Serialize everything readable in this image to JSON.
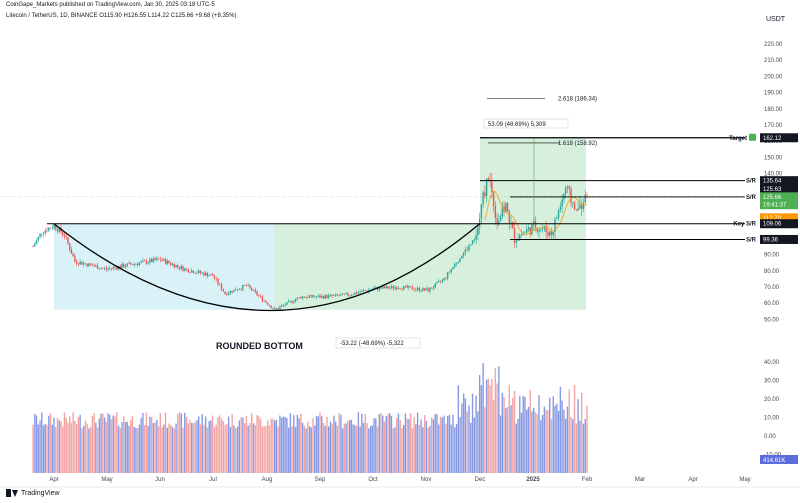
{
  "header": {
    "publish_line": "CoinGape_Markets published on TradingView.com, Jan 30, 2025 03:18 UTC-5",
    "symbol_line": "Litecoin / TetherUS, 1D, BINANCE  O115.90  H126.55  L114.22  C125.66  +9.68 (+8.35%)"
  },
  "currency": "USDT",
  "brand": "TradingView",
  "colors": {
    "up": "#26a69a",
    "down": "#ef5350",
    "vol_up": "#7b8ee0",
    "vol_down": "#f29a9a",
    "cup_fill": "#d9f2f7",
    "green_fill": "#c8ebd2",
    "line": "#000000",
    "target_green": "#4caf50"
  },
  "chart_data": {
    "type": "candlestick",
    "title": "Litecoin / TetherUS, 1D, BINANCE",
    "x_ticks": [
      "Apr",
      "May",
      "Jun",
      "Jul",
      "Aug",
      "Sep",
      "Oct",
      "Nov",
      "Dec",
      "2025",
      "Feb",
      "Mar",
      "Apr",
      "May"
    ],
    "y_ticks": [
      220,
      210,
      200,
      190,
      180,
      170,
      160,
      150,
      140,
      130,
      120,
      110,
      100,
      90,
      80,
      70,
      60,
      50
    ],
    "volume_ticks": [
      "40.00",
      "30.00",
      "20.00",
      "10.00",
      "0.00",
      "-10.00"
    ],
    "ylim": [
      33,
      228
    ],
    "price_path": [
      {
        "x": "Mar 20",
        "y": 95
      },
      {
        "x": "Mar 25",
        "y": 104
      },
      {
        "x": "Apr 1",
        "y": 108
      },
      {
        "x": "Apr 7",
        "y": 102
      },
      {
        "x": "Apr 13",
        "y": 86
      },
      {
        "x": "Apr 20",
        "y": 84
      },
      {
        "x": "May 1",
        "y": 81
      },
      {
        "x": "May 15",
        "y": 84
      },
      {
        "x": "Jun 1",
        "y": 87
      },
      {
        "x": "Jun 15",
        "y": 81
      },
      {
        "x": "Jul 1",
        "y": 77
      },
      {
        "x": "Jul 8",
        "y": 66
      },
      {
        "x": "Jul 20",
        "y": 71
      },
      {
        "x": "Aug 5",
        "y": 56
      },
      {
        "x": "Aug 20",
        "y": 64
      },
      {
        "x": "Sep 1",
        "y": 64
      },
      {
        "x": "Sep 15",
        "y": 65
      },
      {
        "x": "Oct 1",
        "y": 69
      },
      {
        "x": "Oct 15",
        "y": 70
      },
      {
        "x": "Nov 1",
        "y": 68
      },
      {
        "x": "Nov 10",
        "y": 75
      },
      {
        "x": "Nov 20",
        "y": 90
      },
      {
        "x": "Nov 28",
        "y": 100
      },
      {
        "x": "Dec 2",
        "y": 125
      },
      {
        "x": "Dec 5",
        "y": 140
      },
      {
        "x": "Dec 10",
        "y": 110
      },
      {
        "x": "Dec 15",
        "y": 120
      },
      {
        "x": "Dec 20",
        "y": 100
      },
      {
        "x": "Jan 1",
        "y": 108
      },
      {
        "x": "Jan 10",
        "y": 103
      },
      {
        "x": "Jan 18",
        "y": 131
      },
      {
        "x": "Jan 24",
        "y": 117
      },
      {
        "x": "Jan 30",
        "y": 125.66
      }
    ],
    "price_labels": [
      {
        "label": "Target",
        "value": "162.12",
        "level": 162.12,
        "style": "target"
      },
      {
        "label": "S/R",
        "value": "135.64",
        "level": 135.64,
        "style": "dark"
      },
      {
        "label": "",
        "value": "125.63",
        "level": 130.5,
        "style": "dark"
      },
      {
        "label": "S/R",
        "value": "125.66",
        "level": 125.66,
        "style": "green"
      },
      {
        "label": "",
        "value": "19:41:37",
        "level": 120.8,
        "style": "green"
      },
      {
        "label": "",
        "value": "112.70",
        "level": 112.7,
        "style": "orange"
      },
      {
        "label": "Key S/R",
        "value": "109.06",
        "level": 109.06,
        "style": "dark"
      },
      {
        "label": "S/R",
        "value": "99.36",
        "level": 99.36,
        "style": "dark"
      }
    ],
    "volume_badge": "414.61K",
    "annotations": {
      "pattern_label": "ROUNDED BOTTOM",
      "fib_2618": "2.618 (186.34)",
      "fib_1618": "1.618 (158.92)",
      "up_measure": "53.09 (48.69%) 5,309",
      "down_measure": "-53.22 (-48.69%) -5,322"
    }
  }
}
